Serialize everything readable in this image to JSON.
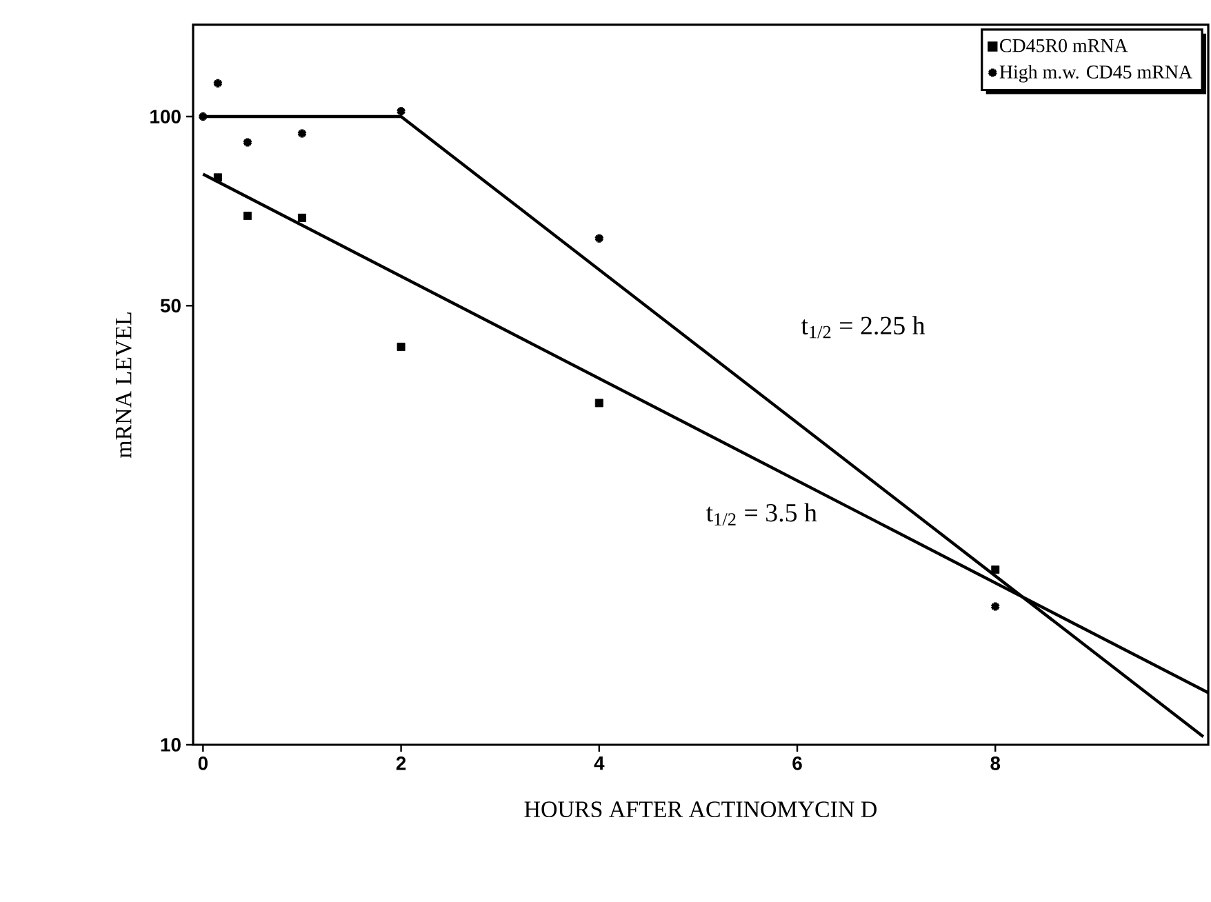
{
  "chart_data": {
    "type": "scatter",
    "xlabel": "HOURS AFTER ACTINOMYCIN D",
    "ylabel": "mRNA LEVEL",
    "log": "y",
    "xlim": [
      -0.1,
      10.15
    ],
    "ylim": [
      10,
      140
    ],
    "xticks": [
      0,
      2,
      4,
      6,
      8
    ],
    "yticks": [
      10,
      50,
      100
    ],
    "legend": "top right",
    "grid": false,
    "series": [
      {
        "name": "CD45R0 mRNA",
        "color": "#000000",
        "marker": "square",
        "x": [
          0.15,
          0.45,
          1,
          2,
          4,
          8
        ],
        "values": [
          80,
          69.5,
          69,
          43,
          35,
          19
        ]
      },
      {
        "name": "High m.w. CD45 mRNA",
        "color": "#000000",
        "marker": "cross",
        "x": [
          0,
          0.15,
          0.45,
          1,
          2,
          4,
          8
        ],
        "values": [
          100,
          113,
          91,
          94,
          102,
          64,
          16.6
        ]
      },
      {
        "type": "line",
        "color": "#000000",
        "line_style": "solid",
        "marker": "none",
        "x": [
          0,
          10.15
        ],
        "values": [
          81,
          12.1
        ]
      },
      {
        "type": "line",
        "color": "#000000",
        "line_style": "solid",
        "marker": "none",
        "x": [
          0,
          2,
          10.1
        ],
        "values": [
          100,
          100,
          10.3
        ]
      }
    ],
    "annotations": [
      "t$_{1/2}$ = 2.25 h",
      "t$_{1/2}$ = 3.5 h"
    ]
  }
}
